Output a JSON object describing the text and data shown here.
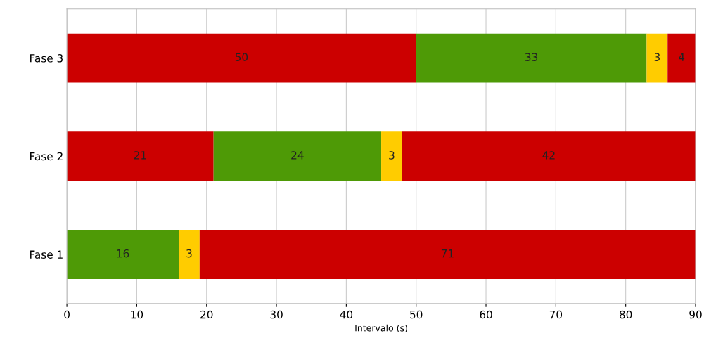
{
  "chart_data": {
    "type": "bar",
    "orientation": "horizontal",
    "stacked": true,
    "xlabel": "Intervalo (s)",
    "categories": [
      "Fase 3",
      "Fase 2",
      "Fase 1"
    ],
    "series": [
      {
        "values": [
          50,
          21,
          16
        ],
        "colors": [
          "#cc0000",
          "#cc0000",
          "#4e9a06"
        ]
      },
      {
        "values": [
          33,
          24,
          3
        ],
        "colors": [
          "#4e9a06",
          "#4e9a06",
          "#ffcc00"
        ]
      },
      {
        "values": [
          3,
          3,
          71
        ],
        "colors": [
          "#ffcc00",
          "#ffcc00",
          "#cc0000"
        ]
      },
      {
        "values": [
          4,
          42,
          null
        ],
        "colors": [
          "#cc0000",
          "#cc0000",
          null
        ]
      }
    ],
    "xlim": [
      0,
      90
    ],
    "xticks": [
      0,
      10,
      20,
      30,
      40,
      50,
      60,
      70,
      80,
      90
    ],
    "grid": "x",
    "data_labels": true
  }
}
